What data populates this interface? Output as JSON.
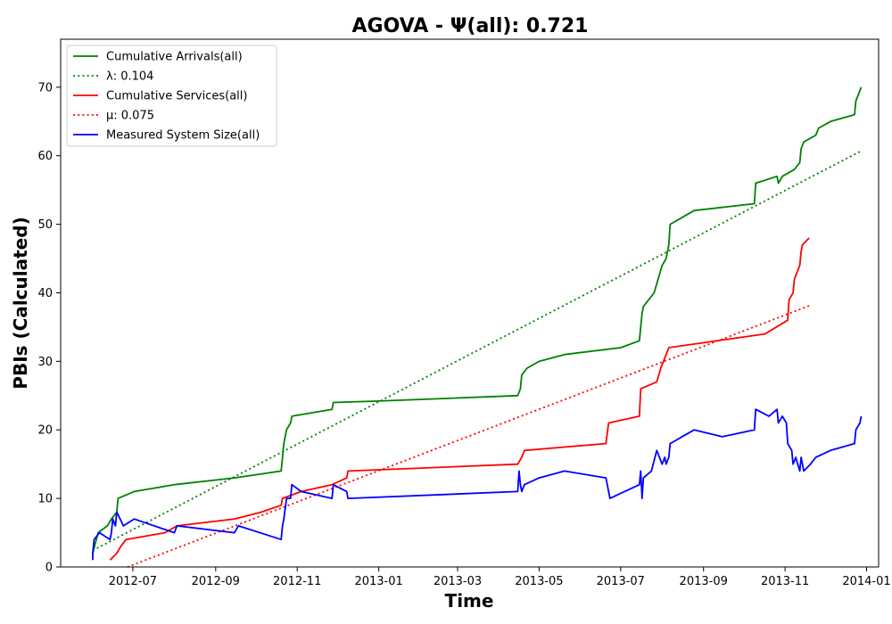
{
  "chart_data": {
    "type": "line",
    "title": "AGOVA -  Ψ(all): 0.721",
    "xlabel": "Time",
    "ylabel": "PBIs (Calculated)",
    "x_axis_type": "date",
    "xlim": [
      "2012-05-08",
      "2014-01-10"
    ],
    "ylim": [
      0,
      77
    ],
    "grid": false,
    "legend_position": "top-left",
    "x_ticks": [
      "2012-07-01",
      "2012-09-01",
      "2012-11-01",
      "2013-01-01",
      "2013-03-01",
      "2013-05-01",
      "2013-07-01",
      "2013-09-01",
      "2013-11-01",
      "2014-01-01"
    ],
    "x_tick_labels": [
      "2012-07",
      "2012-09",
      "2012-11",
      "2013-01",
      "2013-03",
      "2013-05",
      "2013-07",
      "2013-09",
      "2013-11",
      "2014-01"
    ],
    "y_ticks": [
      0,
      10,
      20,
      30,
      40,
      50,
      60,
      70
    ],
    "y_tick_labels": [
      "0",
      "10",
      "20",
      "30",
      "40",
      "50",
      "60",
      "70"
    ],
    "series": [
      {
        "name": "Cumulative Arrivals(all)",
        "color": "#008000",
        "style": "solid",
        "points": [
          [
            "2012-06-01",
            2
          ],
          [
            "2012-06-05",
            5
          ],
          [
            "2012-06-12",
            6
          ],
          [
            "2012-06-15",
            7
          ],
          [
            "2012-06-19",
            8
          ],
          [
            "2012-06-20",
            10
          ],
          [
            "2012-07-02",
            11
          ],
          [
            "2012-08-01",
            12
          ],
          [
            "2012-09-15",
            13
          ],
          [
            "2012-10-20",
            14
          ],
          [
            "2012-10-21",
            16
          ],
          [
            "2012-10-22",
            18
          ],
          [
            "2012-10-24",
            20
          ],
          [
            "2012-10-27",
            21
          ],
          [
            "2012-10-28",
            22
          ],
          [
            "2012-11-27",
            23
          ],
          [
            "2012-11-28",
            24
          ],
          [
            "2013-01-01",
            24.2
          ],
          [
            "2013-04-15",
            25
          ],
          [
            "2013-04-17",
            26
          ],
          [
            "2013-04-18",
            28
          ],
          [
            "2013-04-22",
            29
          ],
          [
            "2013-05-01",
            30
          ],
          [
            "2013-05-20",
            31
          ],
          [
            "2013-07-01",
            32
          ],
          [
            "2013-07-15",
            33
          ],
          [
            "2013-07-16",
            35
          ],
          [
            "2013-07-17",
            37
          ],
          [
            "2013-07-18",
            38
          ],
          [
            "2013-07-22",
            39
          ],
          [
            "2013-07-26",
            40
          ],
          [
            "2013-07-29",
            42
          ],
          [
            "2013-08-01",
            44
          ],
          [
            "2013-08-04",
            45
          ],
          [
            "2013-08-06",
            47
          ],
          [
            "2013-08-07",
            50
          ],
          [
            "2013-08-25",
            52
          ],
          [
            "2013-10-09",
            53
          ],
          [
            "2013-10-10",
            56
          ],
          [
            "2013-10-26",
            57
          ],
          [
            "2013-10-27",
            56
          ],
          [
            "2013-10-30",
            57
          ],
          [
            "2013-11-08",
            58
          ],
          [
            "2013-11-12",
            59
          ],
          [
            "2013-11-13",
            61
          ],
          [
            "2013-11-15",
            62
          ],
          [
            "2013-11-24",
            63
          ],
          [
            "2013-11-26",
            64
          ],
          [
            "2013-12-05",
            65
          ],
          [
            "2013-12-23",
            66
          ],
          [
            "2013-12-24",
            68
          ],
          [
            "2013-12-26",
            69
          ],
          [
            "2013-12-28",
            70
          ]
        ]
      },
      {
        "name": "λ: 0.104",
        "color": "#008000",
        "style": "dotted",
        "points": [
          [
            "2012-06-01",
            2.4
          ],
          [
            "2013-12-28",
            60.7
          ]
        ]
      },
      {
        "name": "Cumulative Services(all)",
        "color": "#ff0000",
        "style": "solid",
        "points": [
          [
            "2012-06-14",
            1
          ],
          [
            "2012-06-19",
            2
          ],
          [
            "2012-06-22",
            3
          ],
          [
            "2012-06-26",
            4
          ],
          [
            "2012-07-25",
            5
          ],
          [
            "2012-08-03",
            6
          ],
          [
            "2012-09-15",
            7
          ],
          [
            "2012-10-05",
            8
          ],
          [
            "2012-10-20",
            9
          ],
          [
            "2012-10-21",
            10
          ],
          [
            "2012-11-04",
            11
          ],
          [
            "2012-11-27",
            12
          ],
          [
            "2012-12-08",
            13
          ],
          [
            "2012-12-09",
            14
          ],
          [
            "2013-04-15",
            15
          ],
          [
            "2013-04-18",
            16
          ],
          [
            "2013-04-20",
            17
          ],
          [
            "2013-06-20",
            18
          ],
          [
            "2013-06-22",
            21
          ],
          [
            "2013-07-15",
            22
          ],
          [
            "2013-07-16",
            26
          ],
          [
            "2013-07-28",
            27
          ],
          [
            "2013-07-31",
            29
          ],
          [
            "2013-08-02",
            30
          ],
          [
            "2013-08-04",
            31
          ],
          [
            "2013-08-06",
            32
          ],
          [
            "2013-10-17",
            34
          ],
          [
            "2013-11-03",
            36
          ],
          [
            "2013-11-04",
            39
          ],
          [
            "2013-11-07",
            40
          ],
          [
            "2013-11-08",
            42
          ],
          [
            "2013-11-10",
            43
          ],
          [
            "2013-11-12",
            44
          ],
          [
            "2013-11-13",
            46
          ],
          [
            "2013-11-14",
            47
          ],
          [
            "2013-11-19",
            48
          ]
        ]
      },
      {
        "name": "μ: 0.075",
        "color": "#ff0000",
        "style": "dotted",
        "points": [
          [
            "2012-06-27",
            0
          ],
          [
            "2013-11-19",
            38.1
          ]
        ]
      },
      {
        "name": "Measured System Size(all)",
        "color": "#0000ff",
        "style": "solid",
        "points": [
          [
            "2012-06-01",
            1
          ],
          [
            "2012-06-01",
            2
          ],
          [
            "2012-06-02",
            4
          ],
          [
            "2012-06-06",
            5
          ],
          [
            "2012-06-14",
            4
          ],
          [
            "2012-06-15",
            5
          ],
          [
            "2012-06-16",
            7
          ],
          [
            "2012-06-18",
            6
          ],
          [
            "2012-06-19",
            8
          ],
          [
            "2012-06-24",
            6
          ],
          [
            "2012-07-02",
            7
          ],
          [
            "2012-08-01",
            5
          ],
          [
            "2012-08-03",
            6
          ],
          [
            "2012-09-15",
            5
          ],
          [
            "2012-09-18",
            6
          ],
          [
            "2012-10-20",
            4
          ],
          [
            "2012-10-21",
            6
          ],
          [
            "2012-10-22",
            7
          ],
          [
            "2012-10-24",
            10
          ],
          [
            "2012-10-27",
            10
          ],
          [
            "2012-10-28",
            12
          ],
          [
            "2012-11-04",
            11
          ],
          [
            "2012-11-27",
            10
          ],
          [
            "2012-11-28",
            12
          ],
          [
            "2012-12-08",
            11
          ],
          [
            "2012-12-09",
            10
          ],
          [
            "2013-04-15",
            11
          ],
          [
            "2013-04-16",
            14
          ],
          [
            "2013-04-17",
            12
          ],
          [
            "2013-04-18",
            11
          ],
          [
            "2013-04-20",
            12
          ],
          [
            "2013-05-01",
            13
          ],
          [
            "2013-05-20",
            14
          ],
          [
            "2013-06-20",
            13
          ],
          [
            "2013-06-23",
            10
          ],
          [
            "2013-07-15",
            12
          ],
          [
            "2013-07-16",
            14
          ],
          [
            "2013-07-17",
            10
          ],
          [
            "2013-07-18",
            13
          ],
          [
            "2013-07-24",
            14
          ],
          [
            "2013-07-28",
            17
          ],
          [
            "2013-07-30",
            16
          ],
          [
            "2013-08-01",
            15
          ],
          [
            "2013-08-03",
            16
          ],
          [
            "2013-08-04",
            15
          ],
          [
            "2013-08-06",
            16
          ],
          [
            "2013-08-07",
            18
          ],
          [
            "2013-08-25",
            20
          ],
          [
            "2013-09-15",
            19
          ],
          [
            "2013-10-09",
            20
          ],
          [
            "2013-10-10",
            23
          ],
          [
            "2013-10-20",
            22
          ],
          [
            "2013-10-26",
            23
          ],
          [
            "2013-10-27",
            21
          ],
          [
            "2013-10-30",
            22
          ],
          [
            "2013-11-02",
            21
          ],
          [
            "2013-11-03",
            18
          ],
          [
            "2013-11-06",
            17
          ],
          [
            "2013-11-07",
            15
          ],
          [
            "2013-11-09",
            16
          ],
          [
            "2013-11-12",
            14
          ],
          [
            "2013-11-13",
            16
          ],
          [
            "2013-11-15",
            14
          ],
          [
            "2013-11-20",
            15
          ],
          [
            "2013-11-24",
            16
          ],
          [
            "2013-12-05",
            17
          ],
          [
            "2013-12-23",
            18
          ],
          [
            "2013-12-24",
            20
          ],
          [
            "2013-12-27",
            21
          ],
          [
            "2013-12-28",
            22
          ]
        ]
      }
    ]
  }
}
